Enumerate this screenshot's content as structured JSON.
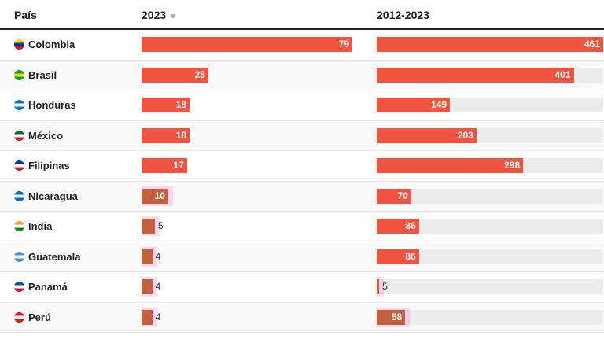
{
  "header": {
    "country": "País",
    "col1": "2023",
    "col2": "2012-2023",
    "sort_icon": "▼"
  },
  "chart_data": {
    "type": "bar",
    "categories": [
      "Colombia",
      "Brasil",
      "Honduras",
      "México",
      "Filipinas",
      "Nicaragua",
      "India",
      "Guatemala",
      "Panamá",
      "Perú"
    ],
    "series": [
      {
        "name": "2023",
        "values": [
          79,
          25,
          18,
          18,
          17,
          10,
          5,
          4,
          4,
          4
        ]
      },
      {
        "name": "2012-2023",
        "values": [
          461,
          401,
          149,
          203,
          298,
          70,
          86,
          86,
          5,
          58
        ]
      }
    ],
    "xlabel": "",
    "ylabel": "",
    "ranges": [
      [
        0,
        79
      ],
      [
        0,
        461
      ]
    ]
  },
  "flags": [
    [
      "#fcd116",
      "#003893",
      "#ce1126"
    ],
    [
      "#009c3b",
      "#ffdf00",
      "#009c3b"
    ],
    [
      "#0073cf",
      "#ffffff",
      "#0073cf"
    ],
    [
      "#006847",
      "#ffffff",
      "#ce1126"
    ],
    [
      "#0038a8",
      "#ffffff",
      "#ce1126"
    ],
    [
      "#0067c6",
      "#ffffff",
      "#0067c6"
    ],
    [
      "#ff9933",
      "#ffffff",
      "#138808"
    ],
    [
      "#4997d0",
      "#ffffff",
      "#4997d0"
    ],
    [
      "#005293",
      "#ffffff",
      "#d21034"
    ],
    [
      "#d91023",
      "#ffffff",
      "#d91023"
    ]
  ]
}
